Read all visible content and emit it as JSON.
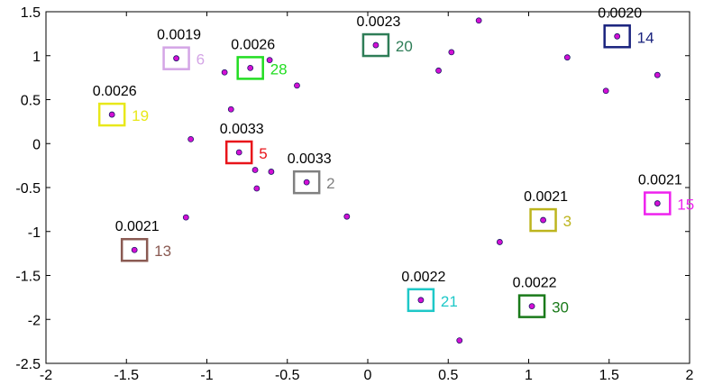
{
  "chart_data": {
    "type": "scatter",
    "title": "",
    "xlabel": "",
    "ylabel": "",
    "xlim": [
      -2,
      2
    ],
    "ylim": [
      -2.5,
      1.5
    ],
    "xticks": [
      -2,
      -1.5,
      -1,
      -0.5,
      0,
      0.5,
      1,
      1.5,
      2
    ],
    "xtick_labels": [
      "-2",
      "-1.5",
      "-1",
      "-0.5",
      "0",
      "0.5",
      "1",
      "1.5",
      "2"
    ],
    "yticks": [
      -2.5,
      -2,
      -1.5,
      -1,
      -0.5,
      0,
      0.5,
      1,
      1.5
    ],
    "ytick_labels": [
      "-2.5",
      "-2",
      "-1.5",
      "-1",
      "-0.5",
      "0",
      "0.5",
      "1",
      "1.5"
    ],
    "grid": false,
    "point_fill": "#d40fd4",
    "point_stroke": "#1a1a66",
    "points": [
      {
        "x": 0.69,
        "y": 1.4
      },
      {
        "x": 0.52,
        "y": 1.04
      },
      {
        "x": 0.44,
        "y": 0.83
      },
      {
        "x": 1.24,
        "y": 0.98
      },
      {
        "x": 1.48,
        "y": 0.6
      },
      {
        "x": 1.8,
        "y": 0.78
      },
      {
        "x": -0.61,
        "y": 0.95
      },
      {
        "x": -0.89,
        "y": 0.81
      },
      {
        "x": -0.44,
        "y": 0.66
      },
      {
        "x": -0.85,
        "y": 0.39
      },
      {
        "x": -1.1,
        "y": 0.05
      },
      {
        "x": -0.7,
        "y": -0.3
      },
      {
        "x": -0.6,
        "y": -0.32
      },
      {
        "x": -0.69,
        "y": -0.51
      },
      {
        "x": -0.13,
        "y": -0.83
      },
      {
        "x": -1.13,
        "y": -0.84
      },
      {
        "x": 0.82,
        "y": -1.12
      },
      {
        "x": 0.57,
        "y": -2.24
      }
    ],
    "highlighted": [
      {
        "id": "20",
        "value": "0.0023",
        "x": 0.05,
        "y": 1.12,
        "color": "#2e7d57"
      },
      {
        "id": "14",
        "value": "0.0020",
        "x": 1.55,
        "y": 1.22,
        "color": "#1a237e"
      },
      {
        "id": "6",
        "value": "0.0019",
        "x": -1.19,
        "y": 0.97,
        "color": "#d4a5e6"
      },
      {
        "id": "28",
        "value": "0.0026",
        "x": -0.73,
        "y": 0.86,
        "color": "#22dd22"
      },
      {
        "id": "19",
        "value": "0.0026",
        "x": -1.59,
        "y": 0.33,
        "color": "#e8e81a"
      },
      {
        "id": "5",
        "value": "0.0033",
        "x": -0.8,
        "y": -0.1,
        "color": "#e8141a"
      },
      {
        "id": "2",
        "value": "0.0033",
        "x": -0.38,
        "y": -0.44,
        "color": "#808080"
      },
      {
        "id": "15",
        "value": "0.0021",
        "x": 1.8,
        "y": -0.68,
        "color": "#ee22ee"
      },
      {
        "id": "3",
        "value": "0.0021",
        "x": 1.09,
        "y": -0.87,
        "color": "#bdb51e"
      },
      {
        "id": "13",
        "value": "0.0021",
        "x": -1.45,
        "y": -1.21,
        "color": "#8a5a52"
      },
      {
        "id": "21",
        "value": "0.0022",
        "x": 0.33,
        "y": -1.78,
        "color": "#1ec8c8"
      },
      {
        "id": "30",
        "value": "0.0022",
        "x": 1.02,
        "y": -1.85,
        "color": "#1a7a1a"
      }
    ]
  }
}
